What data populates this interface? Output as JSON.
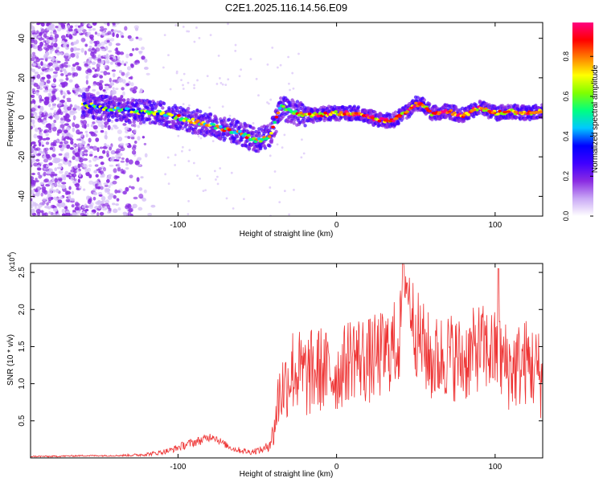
{
  "title": "C2E1.2025.116.14.56.E09",
  "chart_data": [
    {
      "type": "heatmap",
      "xlabel": "Height of straight line (km)",
      "ylabel": "Frequency (Hz)",
      "xlim": [
        -193,
        130
      ],
      "ylim": [
        -50,
        48
      ],
      "x_ticks": [
        -100,
        0,
        100
      ],
      "y_ticks": [
        -40,
        -20,
        0,
        20,
        40
      ],
      "colorbar": {
        "label": "Normalized spectral amplitude",
        "range": [
          0,
          0.97
        ],
        "ticks": [
          "0.0",
          "0.2",
          "0.4",
          "0.6",
          "0.8"
        ],
        "colors": [
          "#ffffff",
          "#c9a8f5",
          "#8a2be2",
          "#3f00ff",
          "#0000ff",
          "#00c8ff",
          "#00ff80",
          "#80ff00",
          "#ffff00",
          "#ff8000",
          "#ff0000",
          "#ff0080"
        ]
      },
      "ridge": {
        "x": [
          -155,
          -140,
          -125,
          -110,
          -95,
          -80,
          -70,
          -60,
          -50,
          -42,
          -35,
          -25,
          -15,
          -5,
          5,
          15,
          25,
          35,
          45,
          50,
          55,
          60,
          70,
          80,
          90,
          100,
          110,
          120,
          130
        ],
        "frequency": [
          6,
          4,
          3,
          2,
          -1,
          -4,
          -6,
          -8,
          -12,
          -9,
          5,
          2,
          1,
          2,
          2,
          2,
          -1,
          -2,
          3,
          7,
          6,
          2,
          3,
          1,
          5,
          2,
          3,
          2,
          3
        ]
      }
    },
    {
      "type": "line",
      "xlabel": "Height of straight line (km)",
      "ylabel": "SNR (10 * v/v)",
      "y_multiplier": "(x10",
      "y_multiplier_exp": "4",
      "xlim": [
        -193,
        130
      ],
      "ylim": [
        0,
        2.62
      ],
      "x_ticks": [
        -100,
        0,
        100
      ],
      "y_ticks": [
        0.5,
        1.0,
        1.5,
        2.0,
        2.5
      ],
      "line_color": "#ee3333",
      "x": [
        -193,
        -180,
        -160,
        -140,
        -125,
        -115,
        -105,
        -95,
        -85,
        -78,
        -72,
        -65,
        -55,
        -45,
        -40,
        -36,
        -32,
        -28,
        -20,
        -10,
        0,
        10,
        20,
        30,
        40,
        42,
        50,
        60,
        70,
        80,
        90,
        100,
        110,
        120,
        130
      ],
      "y": [
        0.02,
        0.02,
        0.03,
        0.03,
        0.04,
        0.06,
        0.1,
        0.18,
        0.24,
        0.3,
        0.2,
        0.12,
        0.08,
        0.12,
        0.3,
        0.9,
        1.0,
        1.2,
        1.1,
        1.2,
        1.1,
        1.4,
        1.3,
        1.4,
        1.6,
        2.6,
        1.7,
        1.3,
        1.4,
        1.3,
        1.5,
        1.4,
        1.2,
        1.3,
        1.1
      ],
      "spread": [
        0.01,
        0.01,
        0.01,
        0.01,
        0.02,
        0.03,
        0.04,
        0.06,
        0.06,
        0.06,
        0.05,
        0.04,
        0.04,
        0.05,
        0.2,
        0.5,
        0.5,
        0.6,
        0.6,
        0.6,
        0.5,
        0.6,
        0.6,
        0.6,
        0.6,
        0.4,
        0.6,
        0.6,
        0.6,
        0.6,
        0.6,
        0.6,
        0.6,
        0.6,
        0.6
      ]
    }
  ]
}
